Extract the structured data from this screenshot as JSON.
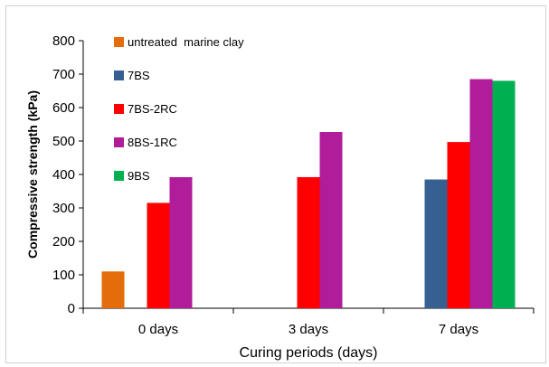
{
  "chart_data": {
    "type": "bar",
    "title": "",
    "xlabel": "Curing periods (days)",
    "ylabel": "Compressive strength  (kPa)",
    "ylim": [
      0,
      800
    ],
    "yticks": [
      "0",
      "100",
      "200",
      "300",
      "400",
      "500",
      "600",
      "700",
      "800"
    ],
    "categories": [
      "0 days",
      "3 days",
      "7 days"
    ],
    "grid": false,
    "legend_position": "top-left",
    "series": [
      {
        "name": "untreated  marine clay",
        "color": "#E46C0A",
        "values": [
          110,
          null,
          null
        ]
      },
      {
        "name": "7BS",
        "color": "#376092",
        "values": [
          null,
          null,
          385
        ]
      },
      {
        "name": "7BS-2RC",
        "color": "#FF0000",
        "values": [
          315,
          392,
          497
        ]
      },
      {
        "name": "8BS-1RC",
        "color": "#B01C9A",
        "values": [
          392,
          527,
          685
        ]
      },
      {
        "name": "9BS",
        "color": "#00B050",
        "values": [
          null,
          null,
          680
        ]
      }
    ]
  }
}
